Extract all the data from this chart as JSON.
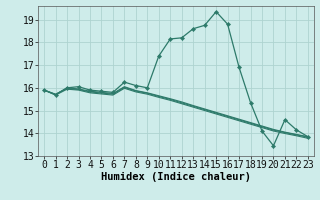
{
  "xlabel": "Humidex (Indice chaleur)",
  "bg_color": "#ceecea",
  "grid_color": "#aed4d0",
  "line_color": "#2d7a6a",
  "xlim": [
    -0.5,
    23.5
  ],
  "ylim": [
    13.0,
    19.6
  ],
  "yticks": [
    13,
    14,
    15,
    16,
    17,
    18,
    19
  ],
  "xticks": [
    0,
    1,
    2,
    3,
    4,
    5,
    6,
    7,
    8,
    9,
    10,
    11,
    12,
    13,
    14,
    15,
    16,
    17,
    18,
    19,
    20,
    21,
    22,
    23
  ],
  "lines": [
    [
      15.9,
      15.7,
      16.0,
      16.05,
      15.9,
      15.85,
      15.8,
      16.25,
      16.1,
      16.0,
      17.4,
      18.15,
      18.2,
      18.6,
      18.75,
      19.35,
      18.8,
      16.9,
      15.35,
      14.1,
      13.45,
      14.6,
      14.15,
      13.85
    ],
    [
      15.9,
      15.7,
      16.0,
      15.95,
      15.85,
      15.8,
      15.75,
      16.05,
      15.88,
      15.78,
      15.65,
      15.52,
      15.38,
      15.22,
      15.07,
      14.92,
      14.77,
      14.62,
      14.47,
      14.32,
      14.17,
      14.05,
      13.95,
      13.85
    ],
    [
      15.9,
      15.72,
      15.97,
      15.93,
      15.82,
      15.77,
      15.72,
      16.02,
      15.86,
      15.76,
      15.62,
      15.49,
      15.34,
      15.19,
      15.04,
      14.89,
      14.74,
      14.59,
      14.44,
      14.29,
      14.14,
      14.03,
      13.93,
      13.83
    ],
    [
      15.9,
      15.68,
      15.94,
      15.9,
      15.78,
      15.73,
      15.68,
      15.98,
      15.82,
      15.72,
      15.58,
      15.45,
      15.3,
      15.15,
      15.0,
      14.85,
      14.7,
      14.55,
      14.4,
      14.25,
      14.1,
      13.99,
      13.89,
      13.78
    ]
  ],
  "tick_fontsize": 7,
  "label_fontsize": 7.5
}
